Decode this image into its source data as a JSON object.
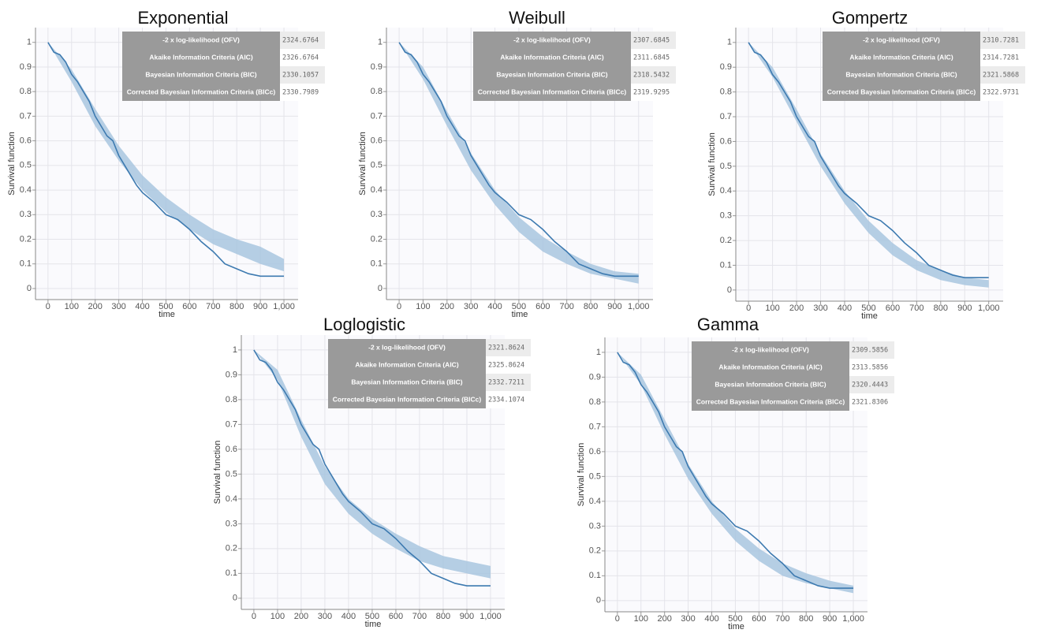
{
  "chart_data": [
    {
      "type": "survival",
      "title": "Exponential",
      "x_label": "time",
      "y_label": "Survival function",
      "xlim": [
        -53,
        1060
      ],
      "ylim": [
        -0.045,
        1.06
      ],
      "xticks": [
        0,
        100,
        200,
        300,
        400,
        500,
        600,
        700,
        800,
        900,
        {
          "value": 1000,
          "label": "1,000"
        }
      ],
      "yticks": [
        0,
        0.1,
        0.2,
        0.3,
        0.4,
        0.5,
        0.6,
        0.7,
        0.8,
        0.9,
        1
      ],
      "grid": true,
      "stats": [
        {
          "label": "-2 x log-likelihood (OFV)",
          "value": 2324.6764
        },
        {
          "label": "Akaike Information Criteria (AIC)",
          "value": 2326.6764
        },
        {
          "label": "Bayesian Information Criteria (BIC)",
          "value": 2330.1057
        },
        {
          "label": "Corrected Bayesian Information Criteria (BICc)",
          "value": 2330.7989
        }
      ],
      "km": {
        "color": "#3d7ab0",
        "x": [
          0,
          25,
          50,
          75,
          100,
          125,
          150,
          175,
          200,
          225,
          250,
          275,
          300,
          325,
          350,
          375,
          400,
          450,
          500,
          550,
          600,
          650,
          700,
          750,
          800,
          850,
          900,
          1000
        ],
        "values": [
          1,
          0.96,
          0.95,
          0.92,
          0.87,
          0.84,
          0.8,
          0.76,
          0.7,
          0.66,
          0.62,
          0.6,
          0.54,
          0.5,
          0.46,
          0.42,
          0.39,
          0.35,
          0.3,
          0.28,
          0.24,
          0.19,
          0.15,
          0.1,
          0.08,
          0.06,
          0.05,
          0.05
        ]
      },
      "band": {
        "color": "#a8c5df",
        "x": [
          0,
          100,
          200,
          300,
          400,
          500,
          600,
          700,
          800,
          900,
          1000
        ],
        "lower": [
          1,
          0.84,
          0.66,
          0.52,
          0.4,
          0.31,
          0.24,
          0.18,
          0.14,
          0.1,
          0.07
        ],
        "upper": [
          1,
          0.89,
          0.73,
          0.58,
          0.46,
          0.37,
          0.3,
          0.24,
          0.2,
          0.17,
          0.12
        ]
      }
    },
    {
      "type": "survival",
      "title": "Weibull",
      "x_label": "time",
      "y_label": "Survival function",
      "xlim": [
        -53,
        1060
      ],
      "ylim": [
        -0.045,
        1.06
      ],
      "xticks": [
        0,
        100,
        200,
        300,
        400,
        500,
        600,
        700,
        800,
        900,
        {
          "value": 1000,
          "label": "1,000"
        }
      ],
      "yticks": [
        0,
        0.1,
        0.2,
        0.3,
        0.4,
        0.5,
        0.6,
        0.7,
        0.8,
        0.9,
        1
      ],
      "grid": true,
      "stats": [
        {
          "label": "-2 x log-likelihood (OFV)",
          "value": 2307.6845
        },
        {
          "label": "Akaike Information Criteria (AIC)",
          "value": 2311.6845
        },
        {
          "label": "Bayesian Information Criteria (BIC)",
          "value": 2318.5432
        },
        {
          "label": "Corrected Bayesian Information Criteria (BICc)",
          "value": 2319.9295
        }
      ],
      "km": {
        "color": "#3d7ab0",
        "x": [
          0,
          25,
          50,
          75,
          100,
          125,
          150,
          175,
          200,
          225,
          250,
          275,
          300,
          325,
          350,
          375,
          400,
          450,
          500,
          550,
          600,
          650,
          700,
          750,
          800,
          850,
          900,
          1000
        ],
        "values": [
          1,
          0.96,
          0.95,
          0.92,
          0.87,
          0.84,
          0.8,
          0.76,
          0.7,
          0.66,
          0.62,
          0.6,
          0.54,
          0.5,
          0.46,
          0.42,
          0.39,
          0.35,
          0.3,
          0.28,
          0.24,
          0.19,
          0.15,
          0.1,
          0.08,
          0.06,
          0.05,
          0.05
        ]
      },
      "band": {
        "color": "#a8c5df",
        "x": [
          0,
          100,
          200,
          300,
          400,
          500,
          600,
          700,
          800,
          900,
          1000
        ],
        "lower": [
          1,
          0.85,
          0.66,
          0.48,
          0.34,
          0.23,
          0.15,
          0.1,
          0.06,
          0.04,
          0.02
        ],
        "upper": [
          1,
          0.9,
          0.72,
          0.55,
          0.4,
          0.29,
          0.21,
          0.15,
          0.1,
          0.07,
          0.06
        ]
      }
    },
    {
      "type": "survival",
      "title": "Gompertz",
      "x_label": "time",
      "y_label": "Survival function",
      "xlim": [
        -53,
        1060
      ],
      "ylim": [
        -0.045,
        1.06
      ],
      "xticks": [
        0,
        100,
        200,
        300,
        400,
        500,
        600,
        700,
        800,
        900,
        {
          "value": 1000,
          "label": "1,000"
        }
      ],
      "yticks": [
        0,
        0.1,
        0.2,
        0.3,
        0.4,
        0.5,
        0.6,
        0.7,
        0.8,
        0.9,
        1
      ],
      "grid": true,
      "stats": [
        {
          "label": "-2 x log-likelihood (OFV)",
          "value": 2310.7281
        },
        {
          "label": "Akaike Information Criteria (AIC)",
          "value": 2314.7281
        },
        {
          "label": "Bayesian Information Criteria (BIC)",
          "value": 2321.5868
        },
        {
          "label": "Corrected Bayesian Information Criteria (BICc)",
          "value": 2322.9731
        }
      ],
      "km": {
        "color": "#3d7ab0",
        "x": [
          0,
          25,
          50,
          75,
          100,
          125,
          150,
          175,
          200,
          225,
          250,
          275,
          300,
          325,
          350,
          375,
          400,
          450,
          500,
          550,
          600,
          650,
          700,
          750,
          800,
          850,
          900,
          1000
        ],
        "values": [
          1,
          0.96,
          0.95,
          0.92,
          0.87,
          0.84,
          0.8,
          0.76,
          0.7,
          0.66,
          0.62,
          0.6,
          0.54,
          0.5,
          0.46,
          0.42,
          0.39,
          0.35,
          0.3,
          0.28,
          0.24,
          0.19,
          0.15,
          0.1,
          0.08,
          0.06,
          0.05,
          0.05
        ]
      },
      "band": {
        "color": "#a8c5df",
        "x": [
          0,
          100,
          200,
          300,
          400,
          500,
          600,
          700,
          800,
          900,
          1000
        ],
        "lower": [
          1,
          0.86,
          0.68,
          0.5,
          0.35,
          0.23,
          0.14,
          0.08,
          0.04,
          0.02,
          0.01
        ],
        "upper": [
          1,
          0.9,
          0.73,
          0.55,
          0.4,
          0.28,
          0.19,
          0.12,
          0.08,
          0.05,
          0.04
        ]
      }
    },
    {
      "type": "survival",
      "title": "Loglogistic",
      "x_label": "time",
      "y_label": "Survival function",
      "xlim": [
        -53,
        1060
      ],
      "ylim": [
        -0.045,
        1.06
      ],
      "xticks": [
        0,
        100,
        200,
        300,
        400,
        500,
        600,
        700,
        800,
        900,
        {
          "value": 1000,
          "label": "1,000"
        }
      ],
      "yticks": [
        0,
        0.1,
        0.2,
        0.3,
        0.4,
        0.5,
        0.6,
        0.7,
        0.8,
        0.9,
        1
      ],
      "grid": true,
      "stats": [
        {
          "label": "-2 x log-likelihood (OFV)",
          "value": 2321.8624
        },
        {
          "label": "Akaike Information Criteria (AIC)",
          "value": 2325.8624
        },
        {
          "label": "Bayesian Information Criteria (BIC)",
          "value": 2332.7211
        },
        {
          "label": "Corrected Bayesian Information Criteria (BICc)",
          "value": 2334.1074
        }
      ],
      "km": {
        "color": "#3d7ab0",
        "x": [
          0,
          25,
          50,
          75,
          100,
          125,
          150,
          175,
          200,
          225,
          250,
          275,
          300,
          325,
          350,
          375,
          400,
          450,
          500,
          550,
          600,
          650,
          700,
          750,
          800,
          850,
          900,
          1000
        ],
        "values": [
          1,
          0.96,
          0.95,
          0.92,
          0.87,
          0.84,
          0.8,
          0.76,
          0.7,
          0.66,
          0.62,
          0.6,
          0.54,
          0.5,
          0.46,
          0.42,
          0.39,
          0.35,
          0.3,
          0.28,
          0.24,
          0.19,
          0.15,
          0.1,
          0.08,
          0.06,
          0.05,
          0.05
        ]
      },
      "band": {
        "color": "#a8c5df",
        "x": [
          0,
          100,
          200,
          300,
          400,
          500,
          600,
          700,
          800,
          900,
          1000
        ],
        "lower": [
          1,
          0.88,
          0.65,
          0.46,
          0.34,
          0.26,
          0.2,
          0.15,
          0.12,
          0.1,
          0.08
        ],
        "upper": [
          1,
          0.92,
          0.72,
          0.53,
          0.4,
          0.32,
          0.26,
          0.21,
          0.17,
          0.15,
          0.13
        ]
      }
    },
    {
      "type": "survival",
      "title": "Gamma",
      "x_label": "time",
      "y_label": "Survival function",
      "xlim": [
        -53,
        1060
      ],
      "ylim": [
        -0.045,
        1.06
      ],
      "xticks": [
        0,
        100,
        200,
        300,
        400,
        500,
        600,
        700,
        800,
        900,
        {
          "value": 1000,
          "label": "1,000"
        }
      ],
      "yticks": [
        0,
        0.1,
        0.2,
        0.3,
        0.4,
        0.5,
        0.6,
        0.7,
        0.8,
        0.9,
        1
      ],
      "grid": true,
      "stats": [
        {
          "label": "-2 x log-likelihood (OFV)",
          "value": 2309.5856
        },
        {
          "label": "Akaike Information Criteria (AIC)",
          "value": 2313.5856
        },
        {
          "label": "Bayesian Information Criteria (BIC)",
          "value": 2320.4443
        },
        {
          "label": "Corrected Bayesian Information Criteria (BICc)",
          "value": 2321.8306
        }
      ],
      "km": {
        "color": "#3d7ab0",
        "x": [
          0,
          25,
          50,
          75,
          100,
          125,
          150,
          175,
          200,
          225,
          250,
          275,
          300,
          325,
          350,
          375,
          400,
          450,
          500,
          550,
          600,
          650,
          700,
          750,
          800,
          850,
          900,
          1000
        ],
        "values": [
          1,
          0.96,
          0.95,
          0.92,
          0.87,
          0.84,
          0.8,
          0.76,
          0.7,
          0.66,
          0.62,
          0.6,
          0.54,
          0.5,
          0.46,
          0.42,
          0.39,
          0.35,
          0.3,
          0.28,
          0.24,
          0.19,
          0.15,
          0.1,
          0.08,
          0.06,
          0.05,
          0.05
        ]
      },
      "band": {
        "color": "#a8c5df",
        "x": [
          0,
          100,
          200,
          300,
          400,
          500,
          600,
          700,
          800,
          900,
          1000
        ],
        "lower": [
          1,
          0.87,
          0.67,
          0.49,
          0.35,
          0.24,
          0.16,
          0.1,
          0.07,
          0.05,
          0.03
        ],
        "upper": [
          1,
          0.91,
          0.73,
          0.55,
          0.4,
          0.29,
          0.21,
          0.15,
          0.11,
          0.08,
          0.06
        ]
      }
    }
  ]
}
